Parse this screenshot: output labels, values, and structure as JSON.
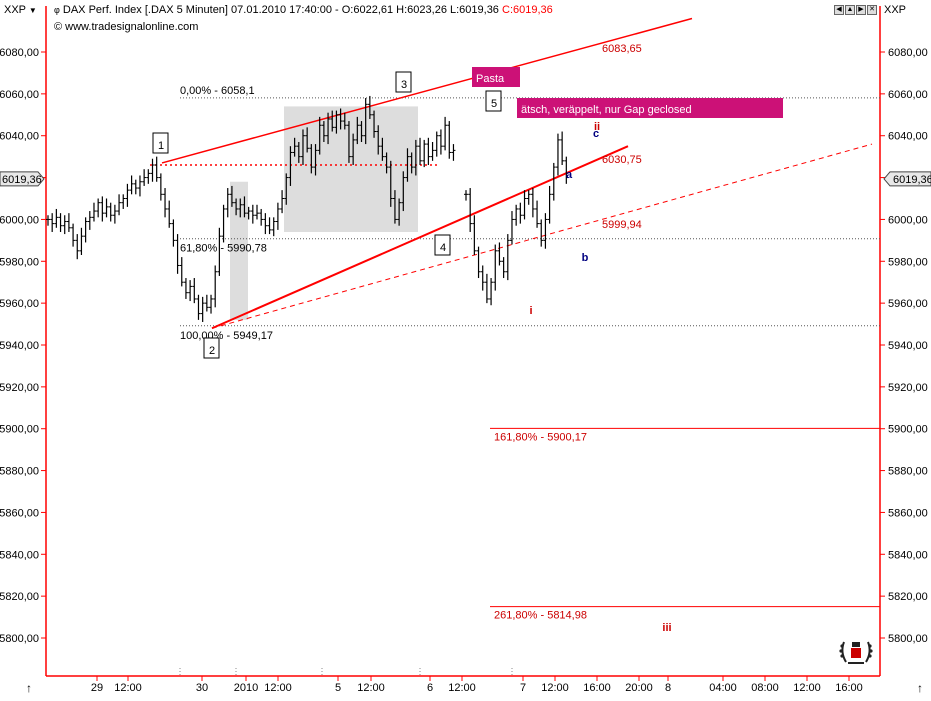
{
  "header": {
    "left_symbol": "XXP",
    "title": "DAX Perf. Index [.DAX  5 Minuten] 07.01.2010 17:40:00 - O:6022,61 H:6023,26 L:6019,36",
    "close_label": "C:6019,36",
    "url": "© www.tradesignalonline.com",
    "right_symbol": "XXP"
  },
  "colors": {
    "axis": "#ff0000",
    "wedge": "#ff0000",
    "fib": "#ff0000",
    "bars": "#000000",
    "shade": "#dddddd",
    "callout_bg": "#cc1177",
    "callout_text": "#ffffff",
    "wave_abc": "#000080",
    "wave_roman": "#cc0000"
  },
  "chart_data": {
    "type": "ohlc",
    "ylim": [
      5785,
      6100
    ],
    "y_ticks": [
      "6080,00",
      "6060,00",
      "6040,00",
      "6020,00",
      "6000,00",
      "5980,00",
      "5960,00",
      "5940,00",
      "5920,00",
      "5900,00",
      "5880,00",
      "5860,00",
      "5840,00",
      "5820,00",
      "5800,00"
    ],
    "y_tick_values": [
      6080,
      6060,
      6040,
      6020,
      6000,
      5980,
      5960,
      5940,
      5920,
      5900,
      5880,
      5860,
      5840,
      5820,
      5800
    ],
    "x_ticks": [
      "29",
      "12:00",
      "30",
      "2010",
      "12:00",
      "5",
      "12:00",
      "6",
      "12:00",
      "7",
      "12:00",
      "16:00",
      "20:00",
      "8",
      "04:00",
      "08:00",
      "12:00",
      "16:00"
    ],
    "price_tag": "6019,36",
    "price_tag_value": 6019.36,
    "fib_levels": [
      {
        "label": "0,00% - 6058,1",
        "value": 6058.1
      },
      {
        "label": "61,80% - 5990,78",
        "value": 5990.78
      },
      {
        "label": "100,00% - 5949,17",
        "value": 5949.17
      },
      {
        "label": "161,80% - 5900,17",
        "value": 5900.17
      },
      {
        "label": "261,80% - 5814,98",
        "value": 5814.98
      }
    ],
    "level_labels": [
      {
        "label": "6083,65",
        "value": 6083.65
      },
      {
        "label": "6030,75",
        "value": 6030.75
      },
      {
        "label": "5999,94",
        "value": 5999.94
      }
    ],
    "series": [
      {
        "name": "",
        "points": [
          [
            0,
            6000
          ],
          [
            2,
            5998
          ],
          [
            4,
            6001
          ],
          [
            6,
            5997
          ],
          [
            8,
            5999
          ],
          [
            10,
            5996
          ],
          [
            12,
            5990
          ],
          [
            14,
            5985
          ],
          [
            16,
            5992
          ],
          [
            18,
            5999
          ],
          [
            20,
            6001
          ],
          [
            22,
            6004
          ],
          [
            24,
            6008
          ],
          [
            26,
            6003
          ],
          [
            28,
            6006
          ],
          [
            30,
            6002
          ],
          [
            32,
            6004
          ],
          [
            34,
            6008
          ],
          [
            36,
            6010
          ],
          [
            38,
            6014
          ],
          [
            40,
            6017
          ],
          [
            42,
            6015
          ],
          [
            44,
            6018
          ],
          [
            46,
            6020
          ],
          [
            48,
            6022
          ],
          [
            50,
            6026
          ],
          [
            52,
            6020
          ],
          [
            54,
            6012
          ],
          [
            56,
            6005
          ],
          [
            58,
            5998
          ],
          [
            60,
            5990
          ],
          [
            62,
            5978
          ],
          [
            64,
            5970
          ],
          [
            66,
            5965
          ],
          [
            68,
            5968
          ],
          [
            70,
            5962
          ],
          [
            72,
            5955
          ],
          [
            74,
            5960
          ],
          [
            76,
            5958
          ],
          [
            78,
            5962
          ],
          [
            80,
            5975
          ],
          [
            82,
            5992
          ],
          [
            84,
            6005
          ],
          [
            86,
            6012
          ],
          [
            88,
            6008
          ],
          [
            90,
            6005
          ],
          [
            92,
            6007
          ],
          [
            94,
            6003
          ],
          [
            96,
            6004
          ],
          [
            98,
            6002
          ],
          [
            100,
            6003
          ],
          [
            102,
            6000
          ],
          [
            104,
            5997
          ],
          [
            106,
            5995
          ],
          [
            108,
            5999
          ],
          [
            110,
            6005
          ],
          [
            112,
            6010
          ],
          [
            114,
            6020
          ],
          [
            116,
            6032
          ],
          [
            118,
            6035
          ],
          [
            120,
            6030
          ],
          [
            122,
            6040
          ],
          [
            124,
            6034
          ],
          [
            126,
            6025
          ],
          [
            128,
            6033
          ],
          [
            130,
            6045
          ],
          [
            132,
            6040
          ],
          [
            134,
            6048
          ],
          [
            136,
            6044
          ],
          [
            138,
            6050
          ],
          [
            140,
            6047
          ],
          [
            142,
            6045
          ],
          [
            144,
            6030
          ],
          [
            146,
            6038
          ],
          [
            148,
            6045
          ],
          [
            150,
            6040
          ],
          [
            152,
            6055
          ],
          [
            154,
            6050
          ],
          [
            156,
            6042
          ],
          [
            158,
            6035
          ],
          [
            160,
            6030
          ],
          [
            162,
            6025
          ],
          [
            164,
            6010
          ],
          [
            166,
            6000
          ],
          [
            168,
            6008
          ],
          [
            170,
            6020
          ],
          [
            172,
            6030
          ],
          [
            174,
            6025
          ],
          [
            176,
            6035
          ],
          [
            178,
            6028
          ],
          [
            180,
            6036
          ],
          [
            182,
            6030
          ],
          [
            184,
            6033
          ],
          [
            186,
            6040
          ],
          [
            188,
            6035
          ],
          [
            190,
            6045
          ],
          [
            192,
            6032
          ],
          [
            194,
            6033
          ]
        ]
      },
      {
        "name": "",
        "points": [
          [
            200,
            6012
          ],
          [
            202,
            5998
          ],
          [
            204,
            5985
          ],
          [
            206,
            5975
          ],
          [
            208,
            5970
          ],
          [
            210,
            5962
          ],
          [
            212,
            5970
          ],
          [
            214,
            5985
          ],
          [
            216,
            5980
          ],
          [
            218,
            5975
          ],
          [
            220,
            5990
          ],
          [
            222,
            6000
          ],
          [
            224,
            6005
          ],
          [
            226,
            6002
          ],
          [
            228,
            6010
          ],
          [
            230,
            6012
          ],
          [
            232,
            6005
          ],
          [
            234,
            5998
          ],
          [
            236,
            5990
          ],
          [
            238,
            6000
          ],
          [
            240,
            6012
          ],
          [
            242,
            6025
          ],
          [
            244,
            6038
          ],
          [
            246,
            6028
          ],
          [
            248,
            6020
          ]
        ]
      }
    ],
    "wave_labels": [
      {
        "label": "1",
        "style": "boxed"
      },
      {
        "label": "2",
        "style": "boxed"
      },
      {
        "label": "3",
        "style": "boxed"
      },
      {
        "label": "4",
        "style": "boxed"
      },
      {
        "label": "5",
        "style": "boxed"
      },
      {
        "label": "a",
        "style": "abc"
      },
      {
        "label": "b",
        "style": "abc"
      },
      {
        "label": "c",
        "style": "abc"
      },
      {
        "label": "i",
        "style": "roman"
      },
      {
        "label": "ii",
        "style": "roman"
      },
      {
        "label": "iii",
        "style": "roman"
      }
    ],
    "callouts": [
      {
        "label": "Pasta"
      },
      {
        "label": "ätsch, veräppelt, nur Gap geclosed"
      }
    ]
  }
}
